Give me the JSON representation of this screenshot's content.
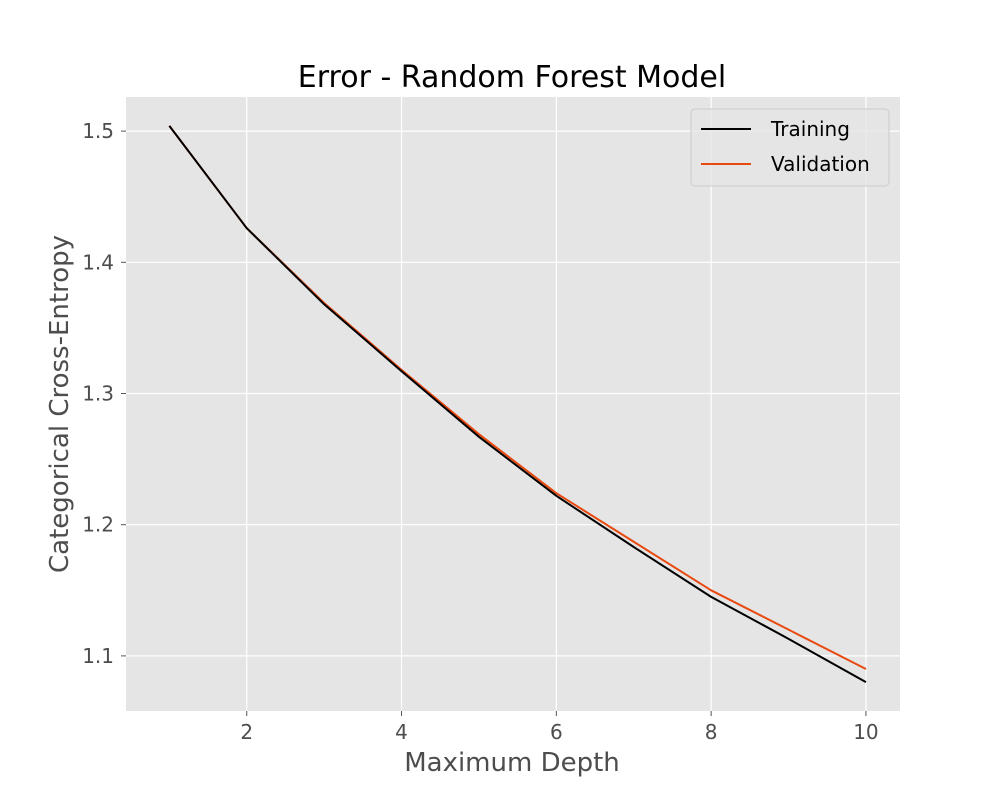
{
  "chart_data": {
    "type": "line",
    "title": "Error - Random Forest Model",
    "xlabel": "Maximum Depth",
    "ylabel": "Categorical Cross-Entropy",
    "x": [
      1,
      2,
      3,
      4,
      5,
      6,
      7,
      8,
      9,
      10
    ],
    "xlim": [
      0.44,
      10.44
    ],
    "ylim": [
      1.058,
      1.526
    ],
    "xticks": [
      2,
      4,
      6,
      8,
      10
    ],
    "yticks": [
      1.1,
      1.2,
      1.3,
      1.4,
      1.5
    ],
    "xtick_labels": [
      "2",
      "4",
      "6",
      "8",
      "10"
    ],
    "ytick_labels": [
      "1.1",
      "1.2",
      "1.3",
      "1.4",
      "1.5"
    ],
    "grid": true,
    "legend_position": "top-right",
    "background_color": "#e5e5e5",
    "series": [
      {
        "name": "Training",
        "color": "#000000",
        "values": [
          1.504,
          1.426,
          1.368,
          1.317,
          1.267,
          1.222,
          1.183,
          1.145,
          1.113,
          1.08
        ]
      },
      {
        "name": "Validation",
        "color": "#e8490f",
        "values": [
          1.504,
          1.426,
          1.369,
          1.318,
          1.269,
          1.224,
          1.187,
          1.15,
          1.12,
          1.09
        ]
      }
    ]
  }
}
